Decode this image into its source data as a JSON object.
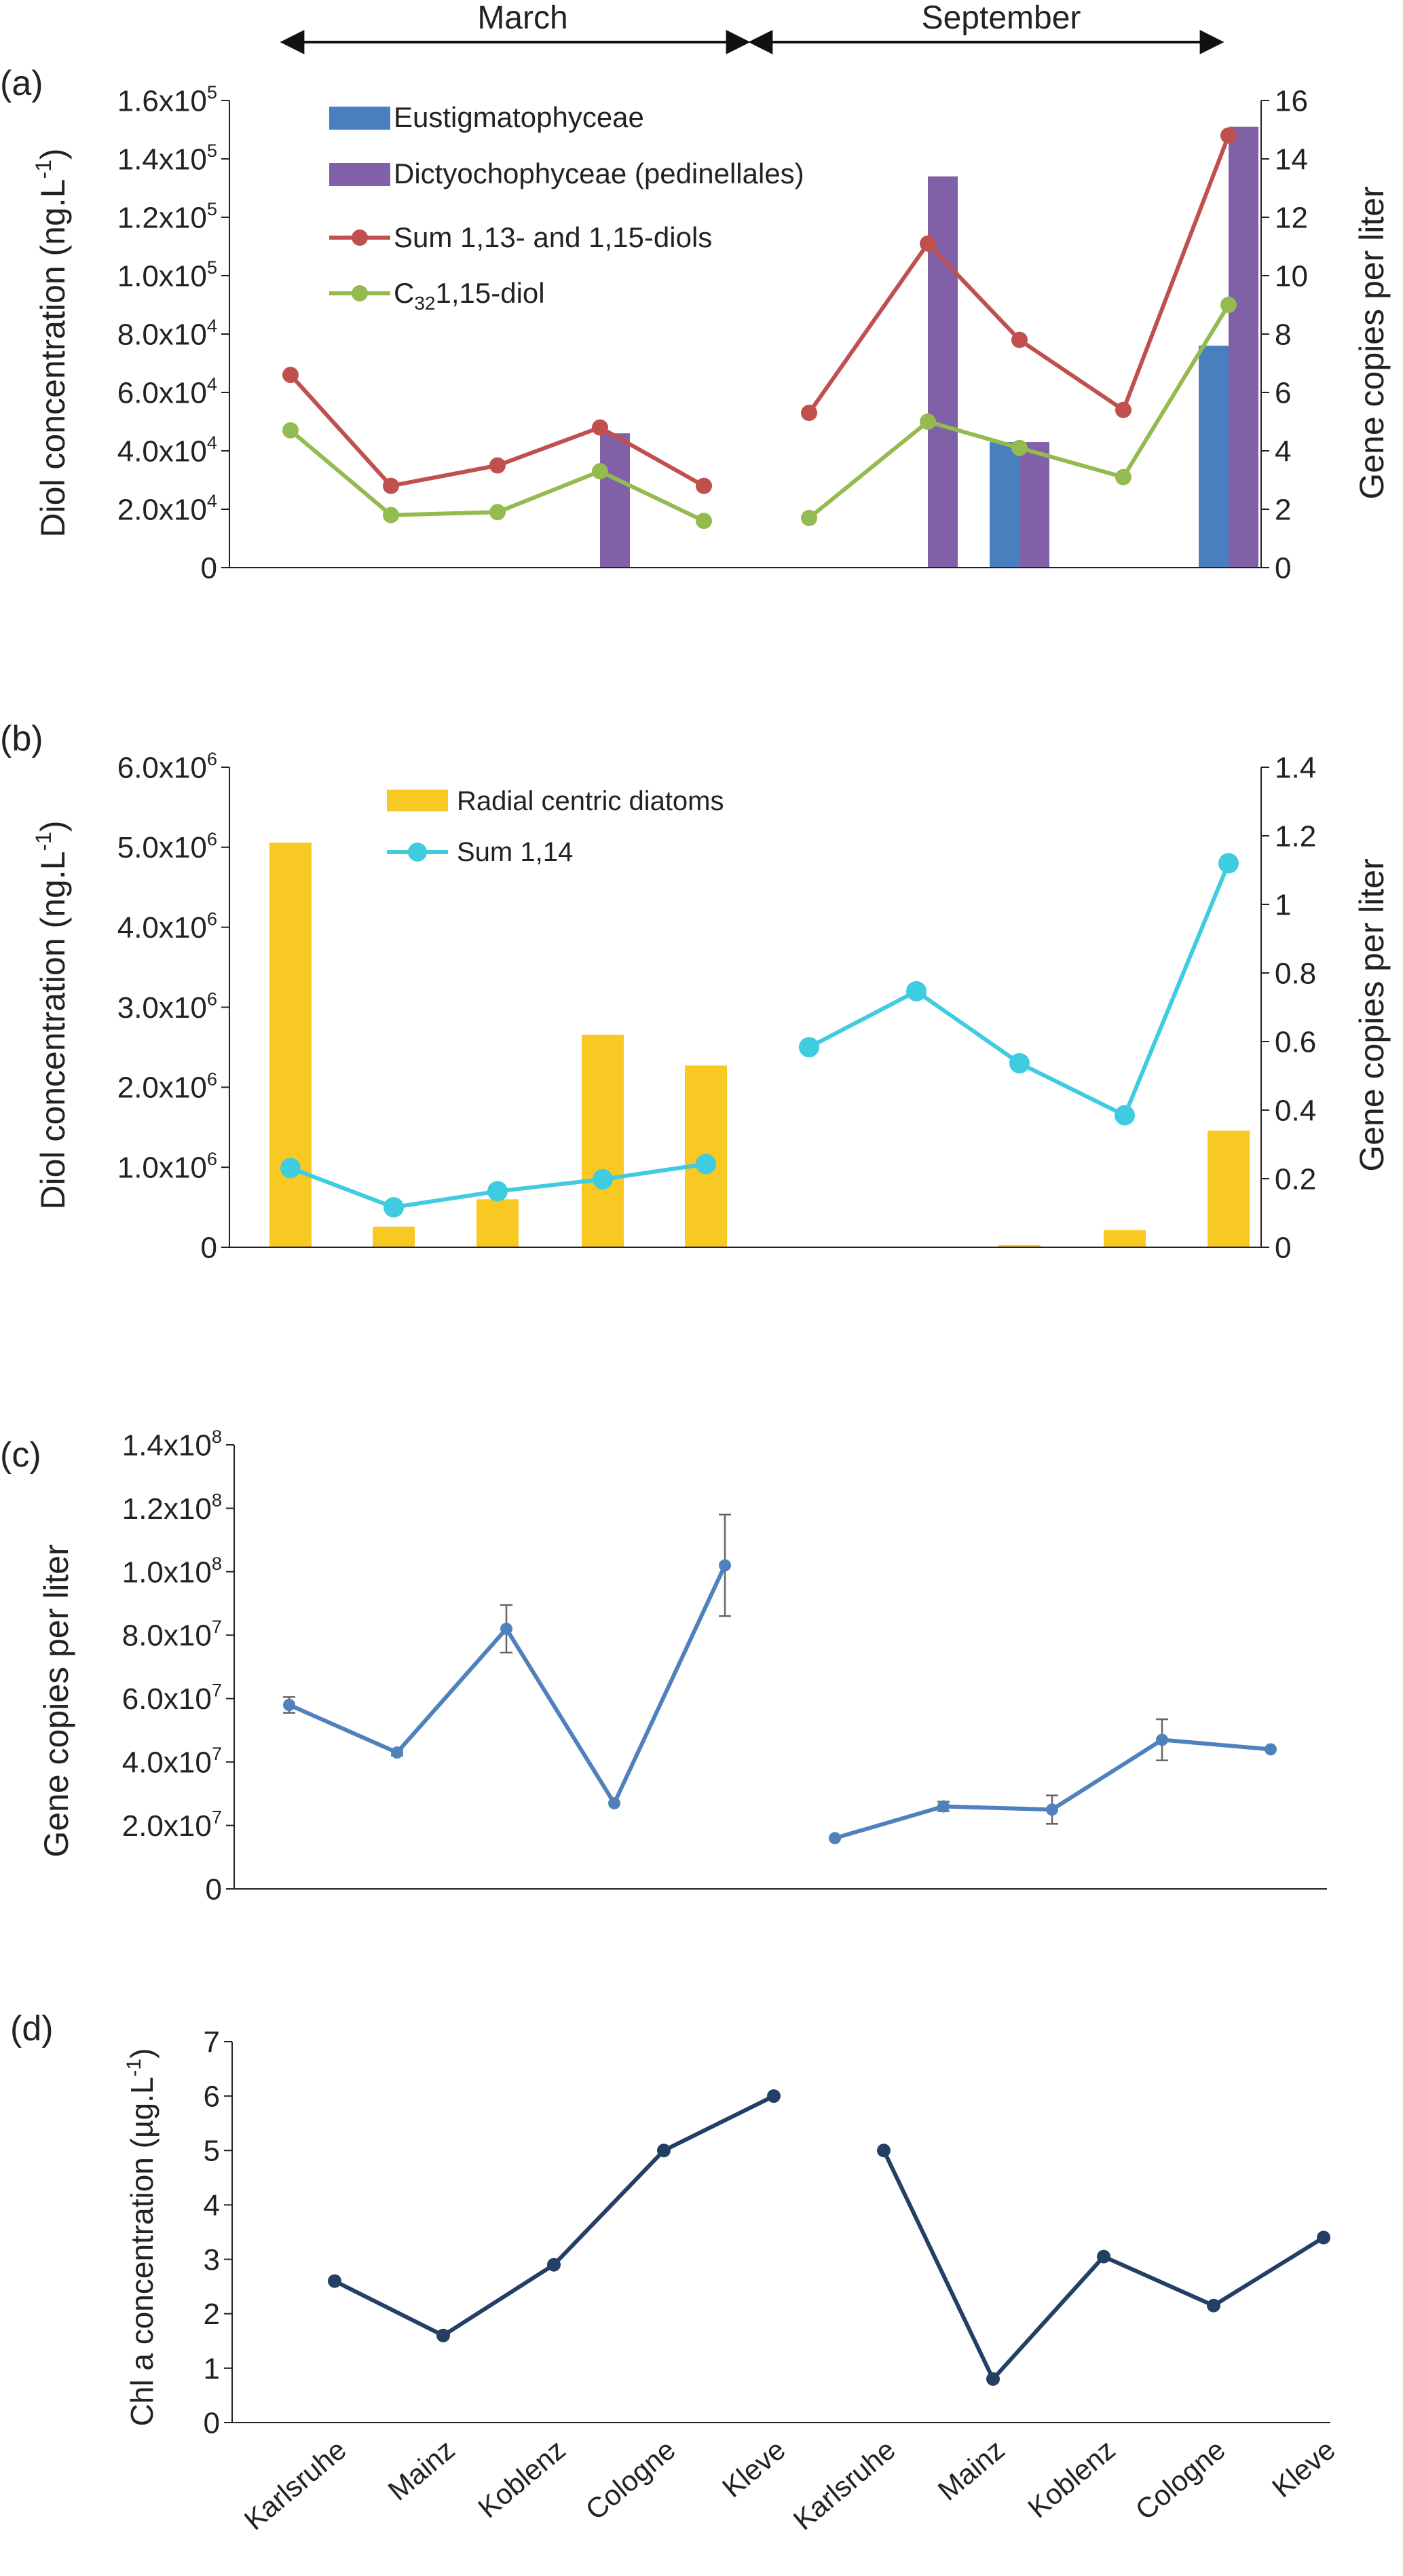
{
  "period_header": {
    "left": "March",
    "right": "September"
  },
  "colors": {
    "eustig": "#4a7fbf",
    "dictyo": "#8061a8",
    "sum1315": "#c0504d",
    "c32": "#94bb4f",
    "diatoms": "#f8c823",
    "sum114": "#3fcbe0",
    "geneC": "#4f81bd",
    "chla": "#243f66",
    "axis": "#222222"
  },
  "chart_data": [
    {
      "panel": "(a)",
      "type": "bar+line",
      "x": [
        "1",
        "2",
        "3",
        "4",
        "5",
        "6",
        "7",
        "8",
        "9",
        "10"
      ],
      "ylabel_left": "Diol concentration (ng.L",
      "ylabel_left_sup": "-1",
      "ylabel_left_end": ")",
      "ylabel_right": "Gene copies per liter",
      "ylim_left": [
        0,
        160000
      ],
      "ylim_right": [
        0,
        16
      ],
      "yticks_left": [
        {
          "v": 0,
          "text": "0",
          "sup": ""
        },
        {
          "v": 20000,
          "text": "2.0x10",
          "sup": "4"
        },
        {
          "v": 40000,
          "text": "4.0x10",
          "sup": "4"
        },
        {
          "v": 60000,
          "text": "6.0x10",
          "sup": "4"
        },
        {
          "v": 80000,
          "text": "8.0x10",
          "sup": "4"
        },
        {
          "v": 100000,
          "text": "1.0x10",
          "sup": "5"
        },
        {
          "v": 120000,
          "text": "1.2x10",
          "sup": "5"
        },
        {
          "v": 140000,
          "text": "1.4x10",
          "sup": "5"
        },
        {
          "v": 160000,
          "text": "1.6x10",
          "sup": "5"
        }
      ],
      "yticks_right": [
        "0",
        "2",
        "4",
        "6",
        "8",
        "10",
        "12",
        "14",
        "16"
      ],
      "bars": [
        {
          "name": "Eustigmatophyceae",
          "values": [
            0,
            0,
            0,
            0,
            0,
            0,
            0,
            4.3,
            0,
            7.6
          ]
        },
        {
          "name": "Dictyochophyceae (pedinellales)",
          "values": [
            0,
            0,
            0,
            4.6,
            0,
            0,
            13.4,
            4.3,
            0,
            15.1
          ]
        }
      ],
      "lines": [
        {
          "name": "Sum 1,13- and 1,15-diols",
          "march": [
            66000,
            28000,
            35000,
            48000,
            28000
          ],
          "september": [
            53000,
            111000,
            78000,
            54000,
            148000
          ]
        },
        {
          "name_prefix": "C",
          "name_sub": "32",
          "name_suffix": "1,15-diol",
          "march": [
            47000,
            18000,
            19000,
            33000,
            16000
          ],
          "september": [
            17000,
            50000,
            41000,
            31000,
            90000
          ]
        }
      ]
    },
    {
      "panel": "(b)",
      "type": "bar+line",
      "x": [
        "1",
        "2",
        "3",
        "4",
        "5",
        "6",
        "7",
        "8",
        "9",
        "10"
      ],
      "ylabel_left": "Diol concentration (ng.L",
      "ylabel_left_sup": "-1",
      "ylabel_left_end": ")",
      "ylabel_right": "Gene copies per liter",
      "ylim_left": [
        0,
        6000000
      ],
      "ylim_right": [
        0,
        1.4
      ],
      "yticks_left": [
        {
          "v": 0,
          "text": "0",
          "sup": ""
        },
        {
          "v": 1000000,
          "text": "1.0x10",
          "sup": "6"
        },
        {
          "v": 2000000,
          "text": "2.0x10",
          "sup": "6"
        },
        {
          "v": 3000000,
          "text": "3.0x10",
          "sup": "6"
        },
        {
          "v": 4000000,
          "text": "4.0x10",
          "sup": "6"
        },
        {
          "v": 5000000,
          "text": "5.0x10",
          "sup": "6"
        },
        {
          "v": 6000000,
          "text": "6.0x10",
          "sup": "6"
        }
      ],
      "yticks_right": [
        "0",
        "0.2",
        "0.4",
        "0.6",
        "0.8",
        "1",
        "1.2",
        "1.4"
      ],
      "bars": [
        {
          "name": "Radial centric diatoms",
          "values": [
            1.18,
            0.06,
            0.14,
            0.62,
            0.53,
            0,
            0,
            0.005,
            0.05,
            0.34
          ]
        }
      ],
      "lines": [
        {
          "name": "Sum 1,14",
          "march": [
            990000,
            500000,
            700000,
            850000,
            1040000
          ],
          "september": [
            2500000,
            3200000,
            2300000,
            1650000,
            4800000
          ]
        }
      ]
    },
    {
      "panel": "(c)",
      "type": "line",
      "x": [
        "1",
        "2",
        "3",
        "4",
        "5",
        "6",
        "7",
        "8",
        "9",
        "10"
      ],
      "ylabel_left": "Gene copies per liter",
      "ylim_left": [
        0,
        140000000
      ],
      "yticks_left": [
        {
          "v": 0,
          "text": "0",
          "sup": ""
        },
        {
          "v": 20000000,
          "text": "2.0x10",
          "sup": "7"
        },
        {
          "v": 40000000,
          "text": "4.0x10",
          "sup": "7"
        },
        {
          "v": 60000000,
          "text": "6.0x10",
          "sup": "7"
        },
        {
          "v": 80000000,
          "text": "8.0x10",
          "sup": "7"
        },
        {
          "v": 100000000,
          "text": "1.0x10",
          "sup": "8"
        },
        {
          "v": 120000000,
          "text": "1.2x10",
          "sup": "8"
        },
        {
          "v": 140000000,
          "text": "1.4x10",
          "sup": "8"
        }
      ],
      "series": [
        {
          "march": [
            58000000,
            43000000,
            82000000,
            27000000,
            102000000
          ],
          "march_err": [
            2500000,
            1000000,
            7500000,
            0,
            16000000
          ],
          "september": [
            16000000,
            26000000,
            25000000,
            47000000,
            44000000
          ],
          "september_err": [
            0,
            1500000,
            4500000,
            6500000,
            0
          ]
        }
      ]
    },
    {
      "panel": "(d)",
      "type": "line",
      "x": [
        "Karlsruhe",
        "Mainz",
        "Koblenz",
        "Cologne",
        "Kleve",
        "Karlsruhe",
        "Mainz",
        "Koblenz",
        "Cologne",
        "Kleve"
      ],
      "ylabel_left": "Chl a concentration (µg.L",
      "ylabel_left_sup": "-1",
      "ylabel_left_end": ")",
      "ylim_left": [
        0,
        7
      ],
      "yticks_left": [
        {
          "v": 0,
          "text": "0",
          "sup": ""
        },
        {
          "v": 1,
          "text": "1",
          "sup": ""
        },
        {
          "v": 2,
          "text": "2",
          "sup": ""
        },
        {
          "v": 3,
          "text": "3",
          "sup": ""
        },
        {
          "v": 4,
          "text": "4",
          "sup": ""
        },
        {
          "v": 5,
          "text": "5",
          "sup": ""
        },
        {
          "v": 6,
          "text": "6",
          "sup": ""
        },
        {
          "v": 7,
          "text": "7",
          "sup": ""
        }
      ],
      "series": [
        {
          "march": [
            2.6,
            1.6,
            2.9,
            5.0,
            6.0
          ],
          "september": [
            5.0,
            0.8,
            3.05,
            2.15,
            3.4
          ]
        }
      ]
    }
  ]
}
